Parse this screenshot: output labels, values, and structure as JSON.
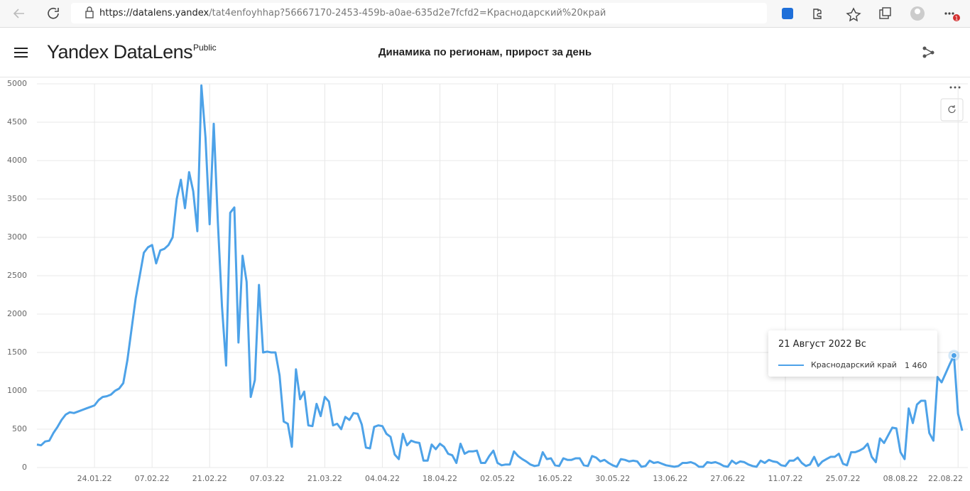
{
  "browser": {
    "url_host": "https://datalens.yandex",
    "url_rest": "/tat4enfoyhhap?56667170-2453-459b-a0ae-635d2e7fcfd2=Краснодарский%20край",
    "badge": "1"
  },
  "header": {
    "logo": "Yandex DataLens",
    "logo_badge": "Public",
    "title": "Динамика по регионам, прирост за день"
  },
  "chart_data": {
    "type": "line",
    "x": [
      "10.01.22",
      "11.01.22",
      "12.01.22",
      "13.01.22",
      "14.01.22",
      "15.01.22",
      "16.01.22",
      "17.01.22",
      "18.01.22",
      "19.01.22",
      "20.01.22",
      "21.01.22",
      "22.01.22",
      "23.01.22",
      "24.01.22",
      "25.01.22",
      "26.01.22",
      "27.01.22",
      "28.01.22",
      "29.01.22",
      "30.01.22",
      "31.01.22",
      "01.02.22",
      "02.02.22",
      "03.02.22",
      "04.02.22",
      "05.02.22",
      "06.02.22",
      "07.02.22",
      "08.02.22",
      "09.02.22",
      "10.02.22",
      "11.02.22",
      "12.02.22",
      "13.02.22",
      "14.02.22",
      "15.02.22",
      "16.02.22",
      "17.02.22",
      "18.02.22",
      "19.02.22",
      "20.02.22",
      "21.02.22",
      "22.02.22",
      "23.02.22",
      "24.02.22",
      "25.02.22",
      "26.02.22",
      "27.02.22",
      "28.02.22",
      "01.03.22",
      "02.03.22",
      "03.03.22",
      "04.03.22",
      "05.03.22",
      "06.03.22",
      "07.03.22",
      "08.03.22",
      "09.03.22",
      "10.03.22",
      "11.03.22",
      "12.03.22",
      "13.03.22",
      "14.03.22",
      "15.03.22",
      "16.03.22",
      "17.03.22",
      "18.03.22",
      "19.03.22",
      "20.03.22",
      "21.03.22",
      "22.03.22",
      "23.03.22",
      "24.03.22",
      "25.03.22",
      "26.03.22",
      "27.03.22",
      "28.03.22",
      "29.03.22",
      "30.03.22",
      "31.03.22",
      "01.04.22",
      "02.04.22",
      "03.04.22",
      "04.04.22",
      "05.04.22",
      "06.04.22",
      "07.04.22",
      "08.04.22",
      "09.04.22",
      "10.04.22",
      "11.04.22",
      "12.04.22",
      "13.04.22",
      "14.04.22",
      "15.04.22",
      "16.04.22",
      "17.04.22",
      "18.04.22",
      "19.04.22",
      "20.04.22",
      "21.04.22",
      "22.04.22",
      "23.04.22",
      "24.04.22",
      "25.04.22",
      "26.04.22",
      "27.04.22",
      "28.04.22",
      "29.04.22",
      "30.04.22",
      "01.05.22",
      "02.05.22",
      "03.05.22",
      "04.05.22",
      "05.05.22",
      "06.05.22",
      "07.05.22",
      "08.05.22",
      "09.05.22",
      "10.05.22",
      "11.05.22",
      "12.05.22",
      "13.05.22",
      "14.05.22",
      "15.05.22",
      "16.05.22",
      "17.05.22",
      "18.05.22",
      "19.05.22",
      "20.05.22",
      "21.05.22",
      "22.05.22",
      "23.05.22",
      "24.05.22",
      "25.05.22",
      "26.05.22",
      "27.05.22",
      "28.05.22",
      "29.05.22",
      "30.05.22",
      "31.05.22",
      "01.06.22",
      "02.06.22",
      "03.06.22",
      "04.06.22",
      "05.06.22",
      "06.06.22",
      "07.06.22",
      "08.06.22",
      "09.06.22",
      "10.06.22",
      "11.06.22",
      "12.06.22",
      "13.06.22",
      "14.06.22",
      "15.06.22",
      "16.06.22",
      "17.06.22",
      "18.06.22",
      "19.06.22",
      "20.06.22",
      "21.06.22",
      "22.06.22",
      "23.06.22",
      "24.06.22",
      "25.06.22",
      "26.06.22",
      "27.06.22",
      "28.06.22",
      "29.06.22",
      "30.06.22",
      "01.07.22",
      "02.07.22",
      "03.07.22",
      "04.07.22",
      "05.07.22",
      "06.07.22",
      "07.07.22",
      "08.07.22",
      "09.07.22",
      "10.07.22",
      "11.07.22",
      "12.07.22",
      "13.07.22",
      "14.07.22",
      "15.07.22",
      "16.07.22",
      "17.07.22",
      "18.07.22",
      "19.07.22",
      "20.07.22",
      "21.07.22",
      "22.07.22",
      "23.07.22",
      "24.07.22",
      "25.07.22",
      "26.07.22",
      "27.07.22",
      "28.07.22",
      "29.07.22",
      "30.07.22",
      "31.07.22",
      "01.08.22",
      "02.08.22",
      "03.08.22",
      "04.08.22",
      "05.08.22",
      "06.08.22",
      "07.08.22",
      "08.08.22",
      "09.08.22",
      "10.08.22",
      "11.08.22",
      "12.08.22",
      "13.08.22",
      "14.08.22",
      "15.08.22",
      "16.08.22",
      "17.08.22",
      "18.08.22",
      "19.08.22",
      "20.08.22",
      "21.08.22",
      "22.08.22",
      "23.08.22"
    ],
    "series": [
      {
        "name": "Краснодарский край",
        "color": "#4da2e8",
        "values": [
          300,
          290,
          340,
          350,
          450,
          530,
          620,
          690,
          720,
          710,
          730,
          750,
          770,
          790,
          810,
          880,
          920,
          930,
          950,
          1000,
          1030,
          1100,
          1400,
          1800,
          2200,
          2500,
          2800,
          2870,
          2900,
          2660,
          2830,
          2850,
          2900,
          3000,
          3500,
          3750,
          3380,
          3850,
          3600,
          3080,
          4980,
          4300,
          3170,
          4480,
          3200,
          2100,
          1330,
          3320,
          3390,
          1630,
          2760,
          2420,
          920,
          1140,
          2380,
          1500,
          1510,
          1500,
          1500,
          1200,
          600,
          570,
          270,
          1280,
          890,
          990,
          550,
          540,
          830,
          670,
          920,
          860,
          550,
          570,
          500,
          660,
          620,
          710,
          700,
          560,
          260,
          250,
          530,
          550,
          540,
          440,
          400,
          170,
          110,
          440,
          290,
          350,
          330,
          320,
          90,
          90,
          300,
          240,
          310,
          270,
          180,
          160,
          60,
          310,
          180,
          210,
          210,
          220,
          60,
          60,
          150,
          220,
          60,
          30,
          40,
          40,
          210,
          150,
          110,
          80,
          40,
          20,
          30,
          200,
          110,
          120,
          30,
          20,
          120,
          100,
          100,
          120,
          120,
          30,
          20,
          150,
          130,
          80,
          100,
          60,
          30,
          10,
          110,
          100,
          80,
          90,
          80,
          10,
          20,
          90,
          60,
          70,
          50,
          30,
          20,
          10,
          20,
          60,
          60,
          70,
          50,
          10,
          10,
          70,
          60,
          70,
          50,
          20,
          10,
          90,
          50,
          80,
          70,
          40,
          20,
          10,
          90,
          60,
          100,
          80,
          70,
          30,
          20,
          90,
          90,
          130,
          60,
          20,
          40,
          140,
          20,
          80,
          110,
          140,
          140,
          180,
          50,
          30,
          200,
          200,
          220,
          250,
          310,
          140,
          70,
          380,
          320,
          420,
          520,
          510,
          200,
          110,
          770,
          580,
          820,
          870,
          870,
          450,
          350,
          1180,
          1110,
          1230,
          1350,
          1460,
          700,
          480
        ],
        "value_labels": [
          null,
          null,
          null,
          null,
          null,
          null,
          null,
          null,
          null,
          null,
          null,
          null,
          null,
          null,
          null,
          null,
          null,
          null,
          null,
          null,
          null,
          null,
          null,
          null,
          null,
          null,
          null,
          null,
          null,
          null,
          null,
          null,
          null,
          null,
          null,
          null,
          null,
          null,
          null,
          null,
          null,
          null,
          null,
          null,
          null,
          null,
          null,
          null,
          null,
          null,
          null,
          null,
          null,
          null,
          null,
          null,
          null,
          null,
          null,
          null,
          null,
          null,
          null,
          null,
          null,
          null,
          null,
          null,
          null,
          null,
          null,
          null,
          null,
          null,
          null,
          null,
          null,
          null,
          null,
          null,
          null,
          null,
          null,
          null,
          null,
          null,
          null,
          null,
          null,
          null,
          null,
          null,
          null,
          null,
          null,
          null,
          null,
          null,
          null,
          null,
          null,
          null,
          null,
          null,
          null,
          null,
          null,
          null,
          null,
          null,
          null,
          null,
          null,
          null,
          null,
          null,
          null,
          null,
          null,
          null,
          null,
          null,
          null,
          null,
          null,
          null,
          null,
          null,
          null,
          null,
          null,
          null,
          null,
          null,
          null,
          null,
          null,
          null,
          null,
          null,
          null,
          null,
          null,
          null,
          null,
          null,
          null,
          null,
          null,
          null,
          null,
          null,
          null,
          null,
          null,
          null,
          null,
          null,
          null,
          null,
          null,
          null,
          null,
          null,
          null,
          null,
          null,
          null,
          null,
          null,
          null,
          null,
          null,
          null,
          null,
          null,
          null,
          null,
          null,
          null,
          null,
          null,
          null,
          null,
          null,
          null,
          null,
          null,
          null,
          null,
          null,
          null,
          null,
          null,
          null,
          null,
          null,
          null,
          null,
          null,
          null,
          null,
          null,
          null,
          null,
          null,
          null,
          null,
          null,
          null,
          null,
          null,
          null,
          null,
          null,
          null,
          null,
          null,
          null,
          null,
          null,
          null,
          null,
          "1 460",
          null,
          null
        ]
      }
    ],
    "tooltip": {
      "title": "21 Август 2022 Вс"
    },
    "xticks": [
      "24.01.22",
      "07.02.22",
      "21.02.22",
      "07.03.22",
      "21.03.22",
      "04.04.22",
      "18.04.22",
      "02.05.22",
      "16.05.22",
      "30.05.22",
      "13.06.22",
      "27.06.22",
      "11.07.22",
      "25.07.22",
      "08.08.22",
      "22.08.22"
    ],
    "ylim": [
      0,
      5000
    ],
    "yticks": [
      0,
      500,
      1000,
      1500,
      2000,
      2500,
      3000,
      3500,
      4000,
      4500,
      5000
    ],
    "grid": true
  }
}
